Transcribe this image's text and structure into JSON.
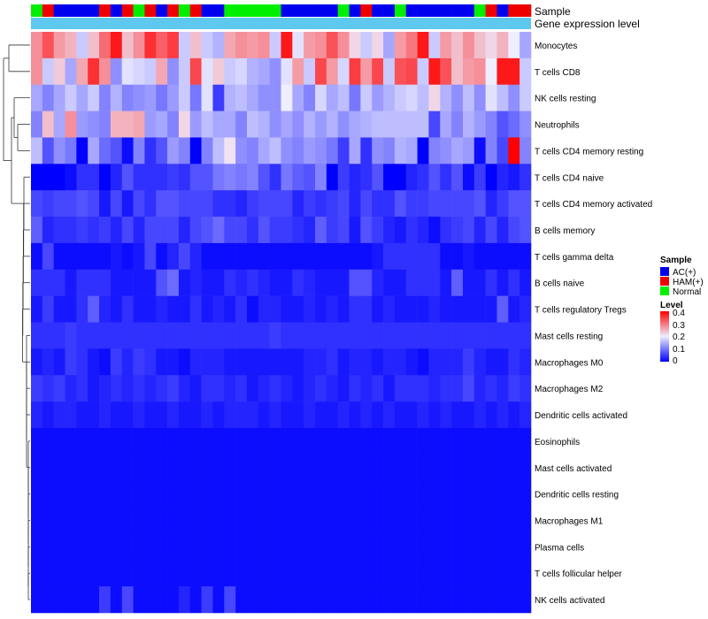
{
  "chart_data": {
    "type": "heatmap",
    "annotation_labels": [
      "Sample",
      "Gene expression level"
    ],
    "sample_legend": {
      "title": "Sample",
      "items": [
        {
          "label": "AC(+)",
          "color": "#0000ee"
        },
        {
          "label": "HAM(+)",
          "color": "#ee0000"
        },
        {
          "label": "Normal",
          "color": "#00ee00"
        }
      ]
    },
    "level_legend": {
      "title": "Level",
      "ticks": [
        "0.4",
        "0.3",
        "0.2",
        "0.1",
        "0"
      ],
      "low_color": "#0000ff",
      "mid_color": "#eeeeff",
      "high_color": "#ff0000",
      "min": 0,
      "max": 0.4
    },
    "gene_expression_color": "#5ec8ee",
    "sample_groups": [
      "N",
      "H",
      "A",
      "A",
      "A",
      "A",
      "H",
      "A",
      "H",
      "N",
      "H",
      "A",
      "H",
      "N",
      "H",
      "A",
      "A",
      "N",
      "N",
      "N",
      "N",
      "N",
      "A",
      "A",
      "A",
      "A",
      "A",
      "N",
      "A",
      "H",
      "A",
      "A",
      "N",
      "A",
      "A",
      "A",
      "A",
      "A",
      "A",
      "N",
      "H",
      "A",
      "H",
      "H"
    ],
    "rows": [
      "Monocytes",
      "T cells CD8",
      "NK cells resting",
      "Neutrophils",
      "T cells CD4 memory resting",
      "T cells CD4 naive",
      "T cells CD4 memory activated",
      "B cells memory",
      "T cells gamma delta",
      "B cells naive",
      "T cells regulatory  Tregs",
      "Mast cells resting",
      "Macrophages M0",
      "Macrophages M2",
      "Dendritic cells activated",
      "Eosinophils",
      "Mast cells activated",
      "Dendritic cells resting",
      "Macrophages M1",
      "Plasma cells",
      "T cells follicular helper",
      "NK cells activated"
    ],
    "values": [
      [
        0.28,
        0.33,
        0.27,
        0.25,
        0.17,
        0.24,
        0.31,
        0.38,
        0.24,
        0.28,
        0.36,
        0.32,
        0.35,
        0.17,
        0.24,
        0.17,
        0.15,
        0.26,
        0.28,
        0.27,
        0.28,
        0.17,
        0.38,
        0.19,
        0.27,
        0.28,
        0.33,
        0.28,
        0.22,
        0.17,
        0.22,
        0.14,
        0.27,
        0.3,
        0.38,
        0.17,
        0.27,
        0.24,
        0.28,
        0.24,
        0.22,
        0.25,
        0.2,
        0.14
      ],
      [
        0.28,
        0.17,
        0.23,
        0.14,
        0.26,
        0.36,
        0.28,
        0.12,
        0.19,
        0.18,
        0.17,
        0.26,
        0.12,
        0.17,
        0.34,
        0.19,
        0.23,
        0.17,
        0.18,
        0.15,
        0.14,
        0.12,
        0.19,
        0.27,
        0.17,
        0.34,
        0.27,
        0.18,
        0.35,
        0.27,
        0.34,
        0.17,
        0.33,
        0.34,
        0.17,
        0.38,
        0.33,
        0.24,
        0.27,
        0.28,
        0.2,
        0.38,
        0.38,
        0.17
      ],
      [
        0.14,
        0.11,
        0.14,
        0.17,
        0.14,
        0.17,
        0.11,
        0.15,
        0.11,
        0.12,
        0.13,
        0.1,
        0.13,
        0.17,
        0.1,
        0.19,
        0.05,
        0.15,
        0.16,
        0.14,
        0.12,
        0.12,
        0.2,
        0.14,
        0.11,
        0.18,
        0.14,
        0.16,
        0.1,
        0.17,
        0.13,
        0.15,
        0.17,
        0.18,
        0.16,
        0.22,
        0.15,
        0.12,
        0.16,
        0.12,
        0.19,
        0.16,
        0.12,
        0.17
      ],
      [
        0.11,
        0.24,
        0.14,
        0.28,
        0.13,
        0.12,
        0.11,
        0.25,
        0.25,
        0.26,
        0.13,
        0.14,
        0.11,
        0.22,
        0.13,
        0.16,
        0.14,
        0.14,
        0.11,
        0.16,
        0.15,
        0.12,
        0.14,
        0.12,
        0.15,
        0.13,
        0.15,
        0.12,
        0.14,
        0.15,
        0.16,
        0.16,
        0.16,
        0.16,
        0.16,
        0.06,
        0.14,
        0.11,
        0.15,
        0.13,
        0.11,
        0.07,
        0.09,
        0.12
      ],
      [
        0.16,
        0.07,
        0.12,
        0.1,
        0.0,
        0.14,
        0.09,
        0.07,
        0.01,
        0.11,
        0.04,
        0.07,
        0.13,
        0.11,
        0.0,
        0.11,
        0.16,
        0.21,
        0.12,
        0.11,
        0.14,
        0.16,
        0.12,
        0.11,
        0.13,
        0.12,
        0.1,
        0.05,
        0.14,
        0.04,
        0.12,
        0.11,
        0.15,
        0.14,
        0.0,
        0.11,
        0.12,
        0.14,
        0.13,
        0.01,
        0.11,
        0.06,
        0.4,
        0.11
      ],
      [
        0.0,
        0.0,
        0.0,
        0.01,
        0.04,
        0.04,
        0.0,
        0.03,
        0.07,
        0.04,
        0.04,
        0.04,
        0.05,
        0.04,
        0.07,
        0.07,
        0.1,
        0.11,
        0.1,
        0.11,
        0.07,
        0.04,
        0.1,
        0.08,
        0.07,
        0.11,
        0.0,
        0.05,
        0.03,
        0.04,
        0.07,
        0.0,
        0.0,
        0.03,
        0.04,
        0.07,
        0.04,
        0.07,
        0.01,
        0.05,
        0.0,
        0.03,
        0.02,
        0.04
      ],
      [
        0.06,
        0.05,
        0.06,
        0.06,
        0.07,
        0.06,
        0.02,
        0.06,
        0.02,
        0.06,
        0.04,
        0.07,
        0.07,
        0.06,
        0.06,
        0.06,
        0.04,
        0.04,
        0.03,
        0.05,
        0.06,
        0.06,
        0.06,
        0.03,
        0.05,
        0.04,
        0.05,
        0.06,
        0.03,
        0.06,
        0.04,
        0.04,
        0.07,
        0.05,
        0.05,
        0.06,
        0.06,
        0.06,
        0.06,
        0.07,
        0.03,
        0.05,
        0.07,
        0.07
      ],
      [
        0.08,
        0.03,
        0.04,
        0.04,
        0.05,
        0.04,
        0.05,
        0.03,
        0.06,
        0.03,
        0.06,
        0.06,
        0.06,
        0.03,
        0.06,
        0.07,
        0.09,
        0.06,
        0.06,
        0.04,
        0.07,
        0.05,
        0.05,
        0.04,
        0.03,
        0.08,
        0.05,
        0.06,
        0.02,
        0.07,
        0.05,
        0.03,
        0.02,
        0.04,
        0.03,
        0.01,
        0.04,
        0.05,
        0.06,
        0.03,
        0.06,
        0.03,
        0.06,
        0.07
      ],
      [
        0.01,
        0.06,
        0.01,
        0.01,
        0.01,
        0.01,
        0.01,
        0.02,
        0.01,
        0.02,
        0.06,
        0.01,
        0.03,
        0.06,
        0.03,
        0.01,
        0.01,
        0.01,
        0.01,
        0.01,
        0.01,
        0.01,
        0.01,
        0.01,
        0.01,
        0.01,
        0.01,
        0.01,
        0.01,
        0.01,
        0.02,
        0.04,
        0.04,
        0.04,
        0.04,
        0.04,
        0.01,
        0.01,
        0.02,
        0.01,
        0.01,
        0.01,
        0.01,
        0.01
      ],
      [
        0.04,
        0.04,
        0.04,
        0.02,
        0.04,
        0.04,
        0.04,
        0.02,
        0.02,
        0.02,
        0.02,
        0.07,
        0.09,
        0.02,
        0.03,
        0.02,
        0.02,
        0.04,
        0.03,
        0.04,
        0.03,
        0.02,
        0.02,
        0.04,
        0.03,
        0.02,
        0.02,
        0.02,
        0.07,
        0.07,
        0.03,
        0.02,
        0.02,
        0.04,
        0.04,
        0.04,
        0.02,
        0.08,
        0.02,
        0.02,
        0.04,
        0.02,
        0.04,
        0.02
      ],
      [
        0.02,
        0.05,
        0.02,
        0.02,
        0.04,
        0.08,
        0.03,
        0.02,
        0.04,
        0.02,
        0.02,
        0.03,
        0.02,
        0.02,
        0.04,
        0.02,
        0.03,
        0.02,
        0.04,
        0.01,
        0.03,
        0.03,
        0.02,
        0.02,
        0.03,
        0.02,
        0.03,
        0.02,
        0.04,
        0.04,
        0.02,
        0.03,
        0.02,
        0.02,
        0.02,
        0.03,
        0.02,
        0.02,
        0.02,
        0.02,
        0.02,
        0.08,
        0.02,
        0.03
      ],
      [
        0.04,
        0.04,
        0.04,
        0.05,
        0.04,
        0.04,
        0.04,
        0.04,
        0.04,
        0.04,
        0.04,
        0.04,
        0.04,
        0.04,
        0.04,
        0.04,
        0.04,
        0.04,
        0.04,
        0.04,
        0.04,
        0.05,
        0.04,
        0.04,
        0.04,
        0.04,
        0.04,
        0.04,
        0.04,
        0.04,
        0.04,
        0.04,
        0.04,
        0.04,
        0.04,
        0.04,
        0.04,
        0.04,
        0.04,
        0.04,
        0.04,
        0.04,
        0.04,
        0.04
      ],
      [
        0.02,
        0.03,
        0.02,
        0.05,
        0.04,
        0.02,
        0.01,
        0.05,
        0.03,
        0.05,
        0.04,
        0.02,
        0.02,
        0.01,
        0.03,
        0.03,
        0.03,
        0.02,
        0.02,
        0.02,
        0.02,
        0.02,
        0.02,
        0.02,
        0.03,
        0.03,
        0.04,
        0.02,
        0.03,
        0.03,
        0.02,
        0.03,
        0.03,
        0.02,
        0.01,
        0.03,
        0.03,
        0.03,
        0.05,
        0.03,
        0.02,
        0.02,
        0.04,
        0.03
      ],
      [
        0.05,
        0.04,
        0.05,
        0.03,
        0.04,
        0.02,
        0.03,
        0.04,
        0.03,
        0.04,
        0.03,
        0.04,
        0.05,
        0.03,
        0.02,
        0.04,
        0.04,
        0.03,
        0.04,
        0.02,
        0.03,
        0.04,
        0.03,
        0.02,
        0.03,
        0.04,
        0.03,
        0.02,
        0.04,
        0.03,
        0.04,
        0.02,
        0.04,
        0.04,
        0.04,
        0.03,
        0.04,
        0.04,
        0.06,
        0.03,
        0.04,
        0.03,
        0.05,
        0.04
      ],
      [
        0.03,
        0.02,
        0.03,
        0.03,
        0.02,
        0.02,
        0.03,
        0.02,
        0.02,
        0.03,
        0.02,
        0.02,
        0.03,
        0.02,
        0.02,
        0.03,
        0.02,
        0.03,
        0.03,
        0.03,
        0.02,
        0.03,
        0.02,
        0.02,
        0.03,
        0.02,
        0.02,
        0.03,
        0.02,
        0.03,
        0.02,
        0.03,
        0.02,
        0.02,
        0.03,
        0.02,
        0.03,
        0.02,
        0.02,
        0.03,
        0.02,
        0.03,
        0.02,
        0.03
      ],
      [
        0.01,
        0.01,
        0.01,
        0.01,
        0.01,
        0.01,
        0.01,
        0.01,
        0.01,
        0.01,
        0.01,
        0.01,
        0.01,
        0.01,
        0.01,
        0.01,
        0.01,
        0.01,
        0.01,
        0.01,
        0.01,
        0.01,
        0.01,
        0.01,
        0.01,
        0.01,
        0.01,
        0.01,
        0.01,
        0.01,
        0.01,
        0.01,
        0.01,
        0.01,
        0.01,
        0.01,
        0.01,
        0.01,
        0.01,
        0.01,
        0.01,
        0.01,
        0.01,
        0.01
      ],
      [
        0.01,
        0.01,
        0.01,
        0.01,
        0.01,
        0.01,
        0.01,
        0.01,
        0.01,
        0.01,
        0.01,
        0.01,
        0.01,
        0.01,
        0.01,
        0.01,
        0.01,
        0.01,
        0.01,
        0.01,
        0.01,
        0.01,
        0.01,
        0.01,
        0.01,
        0.01,
        0.01,
        0.01,
        0.01,
        0.01,
        0.01,
        0.01,
        0.01,
        0.01,
        0.01,
        0.01,
        0.01,
        0.01,
        0.01,
        0.01,
        0.01,
        0.01,
        0.01,
        0.01
      ],
      [
        0.01,
        0.01,
        0.01,
        0.01,
        0.01,
        0.01,
        0.01,
        0.01,
        0.01,
        0.01,
        0.01,
        0.01,
        0.01,
        0.01,
        0.01,
        0.01,
        0.01,
        0.01,
        0.01,
        0.01,
        0.01,
        0.01,
        0.01,
        0.01,
        0.01,
        0.01,
        0.01,
        0.01,
        0.01,
        0.01,
        0.01,
        0.01,
        0.01,
        0.01,
        0.01,
        0.01,
        0.01,
        0.01,
        0.01,
        0.01,
        0.01,
        0.01,
        0.01,
        0.01
      ],
      [
        0.01,
        0.01,
        0.01,
        0.01,
        0.01,
        0.01,
        0.01,
        0.01,
        0.01,
        0.01,
        0.01,
        0.01,
        0.01,
        0.01,
        0.01,
        0.01,
        0.01,
        0.01,
        0.01,
        0.01,
        0.01,
        0.01,
        0.01,
        0.01,
        0.01,
        0.01,
        0.01,
        0.01,
        0.01,
        0.01,
        0.01,
        0.01,
        0.01,
        0.01,
        0.01,
        0.01,
        0.01,
        0.01,
        0.01,
        0.01,
        0.01,
        0.01,
        0.01,
        0.01
      ],
      [
        0.01,
        0.01,
        0.01,
        0.01,
        0.01,
        0.01,
        0.01,
        0.01,
        0.01,
        0.01,
        0.01,
        0.01,
        0.01,
        0.01,
        0.01,
        0.01,
        0.01,
        0.01,
        0.01,
        0.01,
        0.01,
        0.01,
        0.01,
        0.01,
        0.01,
        0.01,
        0.01,
        0.01,
        0.01,
        0.01,
        0.01,
        0.01,
        0.01,
        0.01,
        0.01,
        0.01,
        0.01,
        0.01,
        0.01,
        0.01,
        0.01,
        0.01,
        0.01,
        0.01
      ],
      [
        0.01,
        0.01,
        0.01,
        0.01,
        0.01,
        0.01,
        0.01,
        0.01,
        0.01,
        0.01,
        0.01,
        0.01,
        0.01,
        0.01,
        0.01,
        0.01,
        0.01,
        0.01,
        0.01,
        0.01,
        0.01,
        0.01,
        0.01,
        0.01,
        0.01,
        0.01,
        0.01,
        0.01,
        0.01,
        0.01,
        0.01,
        0.01,
        0.01,
        0.01,
        0.01,
        0.01,
        0.01,
        0.01,
        0.01,
        0.01,
        0.01,
        0.01,
        0.01,
        0.01
      ],
      [
        0.01,
        0.01,
        0.01,
        0.01,
        0.01,
        0.01,
        0.05,
        0.01,
        0.06,
        0.01,
        0.01,
        0.01,
        0.01,
        0.03,
        0.01,
        0.05,
        0.01,
        0.06,
        0.01,
        0.01,
        0.01,
        0.01,
        0.01,
        0.01,
        0.01,
        0.01,
        0.01,
        0.01,
        0.01,
        0.01,
        0.01,
        0.01,
        0.01,
        0.01,
        0.01,
        0.01,
        0.01,
        0.01,
        0.01,
        0.01,
        0.01,
        0.01,
        0.01,
        0.01
      ]
    ]
  }
}
